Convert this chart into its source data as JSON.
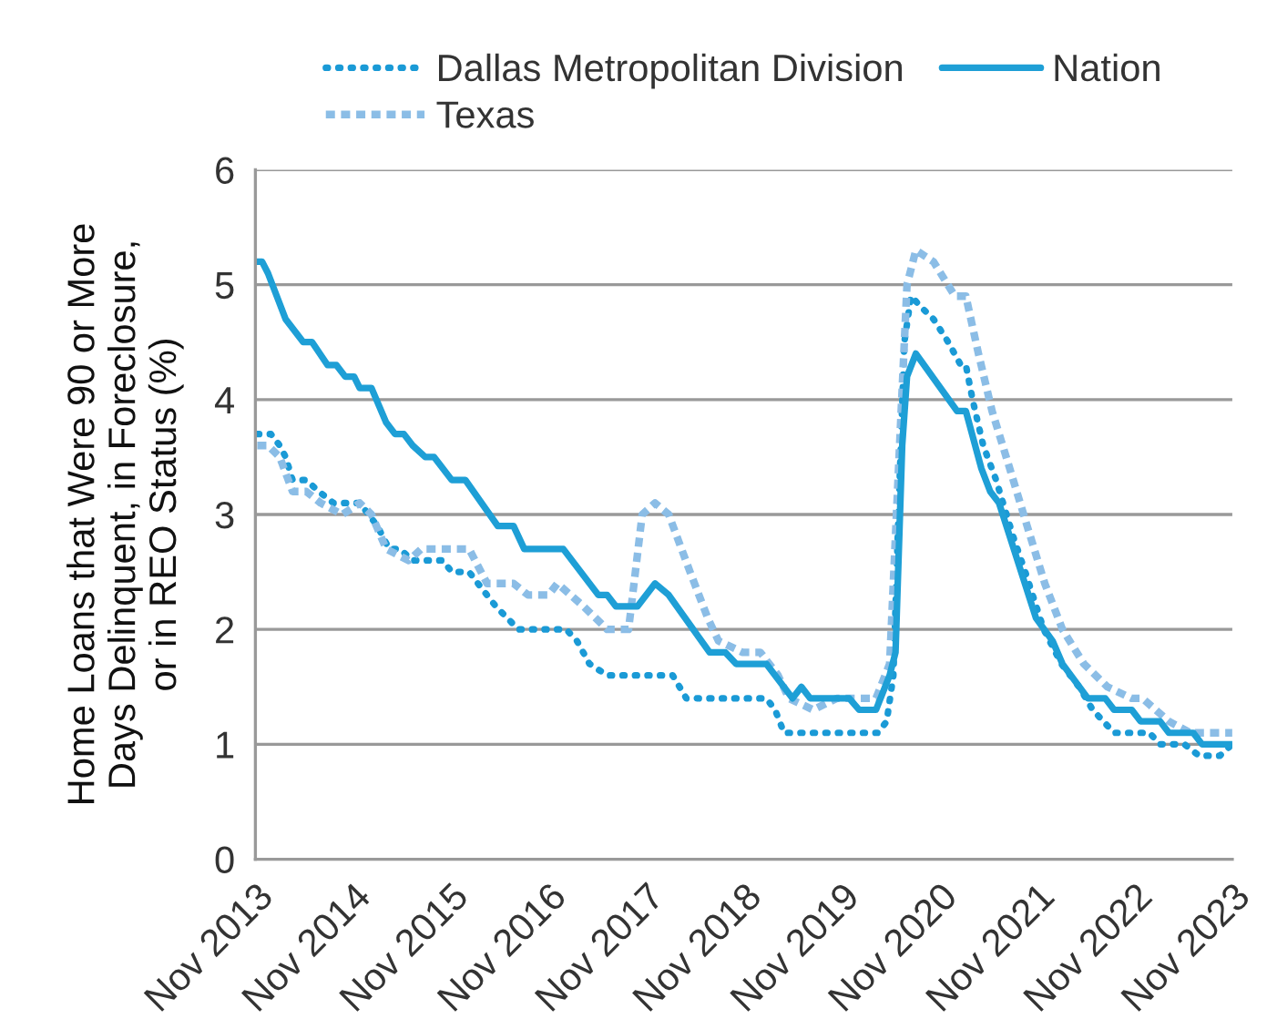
{
  "chart_data": {
    "type": "line",
    "ylabel": "Home Loans that Were 90 or More\nDays Delinquent, in Foreclosure,\nor in REO Status (%)",
    "xlim": [
      "2013-11-01",
      "2023-11-01"
    ],
    "xticks": [
      {
        "value": "2013-11-01",
        "label": "Nov 2013"
      },
      {
        "value": "2014-11-01",
        "label": "Nov 2014"
      },
      {
        "value": "2015-11-01",
        "label": "Nov 2015"
      },
      {
        "value": "2016-11-01",
        "label": "Nov 2016"
      },
      {
        "value": "2017-11-01",
        "label": "Nov 2017"
      },
      {
        "value": "2018-11-01",
        "label": "Nov 2018"
      },
      {
        "value": "2019-11-01",
        "label": "Nov 2019"
      },
      {
        "value": "2020-11-01",
        "label": "Nov 2020"
      },
      {
        "value": "2021-11-01",
        "label": "Nov 2021"
      },
      {
        "value": "2022-11-01",
        "label": "Nov 2022"
      },
      {
        "value": "2023-11-01",
        "label": "Nov 2023"
      }
    ],
    "ylim": [
      0,
      6
    ],
    "yticks": [
      0,
      1,
      2,
      3,
      4,
      5,
      6
    ],
    "grid": "y",
    "legend": "top",
    "series": [
      {
        "name": "Dallas Metropolitan Division",
        "color": "#1a9ad6",
        "line_style": "dotted",
        "x": [
          "2013-11-08",
          "2013-12-29",
          "2014-01-31",
          "2014-02-22",
          "2014-03-20",
          "2014-05-10",
          "2014-06-26",
          "2014-08-20",
          "2014-11-26",
          "2015-01-31",
          "2015-03-16",
          "2015-04-25",
          "2015-06-12",
          "2015-10-03",
          "2015-11-05",
          "2016-01-09",
          "2016-02-11",
          "2016-04-18",
          "2016-07-11",
          "2017-01-06",
          "2017-02-15",
          "2017-04-03",
          "2017-06-08",
          "2018-02-08",
          "2018-03-31",
          "2018-10-14",
          "2019-01-24",
          "2019-02-26",
          "2019-03-31",
          "2020-03-16",
          "2020-04-18",
          "2020-05-13",
          "2020-06-01",
          "2020-06-23",
          "2020-07-18",
          "2020-08-27",
          "2020-10-10",
          "2020-12-04",
          "2021-01-20",
          "2021-02-08",
          "2021-03-05",
          "2021-04-14",
          "2021-06-01",
          "2021-08-05",
          "2021-09-18",
          "2021-11-26",
          "2022-01-31",
          "2022-04-07",
          "2022-05-28",
          "2022-08-16",
          "2022-12-26",
          "2023-02-04",
          "2023-05-06",
          "2023-06-30",
          "2023-09-15",
          "2023-11-01"
        ],
        "values": [
          3.7,
          3.7,
          3.6,
          3.5,
          3.3,
          3.3,
          3.2,
          3.1,
          3.1,
          2.9,
          2.7,
          2.7,
          2.6,
          2.6,
          2.5,
          2.5,
          2.4,
          2.2,
          2.0,
          2.0,
          1.9,
          1.7,
          1.6,
          1.6,
          1.4,
          1.4,
          1.4,
          1.3,
          1.1,
          1.1,
          1.2,
          1.6,
          3.0,
          4.5,
          4.9,
          4.8,
          4.7,
          4.5,
          4.3,
          4.3,
          4.0,
          3.6,
          3.3,
          2.8,
          2.5,
          2.0,
          1.7,
          1.5,
          1.3,
          1.1,
          1.1,
          1.0,
          1.0,
          0.9,
          0.9,
          1.0
        ]
      },
      {
        "name": "Texas",
        "color": "#8bbde6",
        "line_style": "dashed",
        "x": [
          "2013-11-08",
          "2013-12-18",
          "2014-01-31",
          "2014-03-20",
          "2014-05-10",
          "2014-07-03",
          "2014-09-22",
          "2014-11-26",
          "2015-01-09",
          "2015-03-05",
          "2015-05-28",
          "2015-07-14",
          "2016-01-09",
          "2016-03-16",
          "2016-06-23",
          "2016-08-16",
          "2016-11-01",
          "2016-12-04",
          "2017-03-12",
          "2017-06-08",
          "2017-08-27",
          "2017-10-17",
          "2017-12-04",
          "2018-01-24",
          "2018-04-14",
          "2018-06-19",
          "2018-07-29",
          "2018-10-28",
          "2019-01-02",
          "2019-03-09",
          "2019-04-18",
          "2019-07-18",
          "2019-10-14",
          "2019-11-30",
          "2020-03-09",
          "2020-04-29",
          "2020-06-15",
          "2020-07-03",
          "2020-08-05",
          "2020-10-10",
          "2020-12-29",
          "2021-02-08",
          "2021-03-27",
          "2021-05-17",
          "2021-07-22",
          "2021-09-25",
          "2021-11-30",
          "2022-02-04",
          "2022-04-25",
          "2022-07-22",
          "2022-10-21",
          "2022-11-30",
          "2023-03-09",
          "2023-05-28",
          "2023-11-01"
        ],
        "values": [
          3.6,
          3.6,
          3.5,
          3.2,
          3.2,
          3.1,
          3.0,
          3.1,
          3.0,
          2.7,
          2.6,
          2.7,
          2.7,
          2.4,
          2.4,
          2.3,
          2.3,
          2.4,
          2.2,
          2.0,
          2.0,
          3.0,
          3.1,
          3.0,
          2.5,
          2.1,
          1.9,
          1.8,
          1.8,
          1.6,
          1.4,
          1.3,
          1.4,
          1.4,
          1.4,
          1.7,
          4.1,
          5.0,
          5.3,
          5.2,
          4.9,
          4.9,
          4.4,
          3.9,
          3.4,
          2.9,
          2.4,
          2.0,
          1.7,
          1.5,
          1.4,
          1.4,
          1.2,
          1.1,
          1.1
        ]
      },
      {
        "name": "Nation",
        "color": "#1e9fd6",
        "line_style": "solid",
        "x": [
          "2013-11-08",
          "2013-11-26",
          "2013-12-18",
          "2014-02-22",
          "2014-04-29",
          "2014-06-01",
          "2014-07-29",
          "2014-08-31",
          "2014-10-03",
          "2014-11-05",
          "2014-11-26",
          "2015-01-09",
          "2015-03-05",
          "2015-04-07",
          "2015-05-10",
          "2015-06-12",
          "2015-07-29",
          "2015-08-31",
          "2015-11-05",
          "2015-12-26",
          "2016-04-25",
          "2016-06-23",
          "2016-08-02",
          "2016-12-26",
          "2017-05-06",
          "2017-06-08",
          "2017-07-11",
          "2017-09-29",
          "2017-12-04",
          "2018-01-24",
          "2018-06-26",
          "2018-08-24",
          "2018-10-03",
          "2019-01-24",
          "2019-05-02",
          "2019-06-04",
          "2019-07-07",
          "2019-11-30",
          "2020-01-06",
          "2020-03-09",
          "2020-04-29",
          "2020-05-21",
          "2020-06-15",
          "2020-07-03",
          "2020-08-05",
          "2021-01-06",
          "2021-02-08",
          "2021-04-07",
          "2021-05-10",
          "2021-06-12",
          "2021-10-28",
          "2021-12-29",
          "2022-02-04",
          "2022-05-10",
          "2022-07-14",
          "2022-08-16",
          "2022-10-21",
          "2022-11-23",
          "2023-02-04",
          "2023-03-09",
          "2023-06-08",
          "2023-07-11",
          "2023-11-01"
        ],
        "values": [
          5.2,
          5.2,
          5.1,
          4.7,
          4.5,
          4.5,
          4.3,
          4.3,
          4.2,
          4.2,
          4.1,
          4.1,
          3.8,
          3.7,
          3.7,
          3.6,
          3.5,
          3.5,
          3.3,
          3.3,
          2.9,
          2.9,
          2.7,
          2.7,
          2.3,
          2.3,
          2.2,
          2.2,
          2.4,
          2.3,
          1.8,
          1.8,
          1.7,
          1.7,
          1.4,
          1.5,
          1.4,
          1.4,
          1.3,
          1.3,
          1.6,
          1.8,
          3.6,
          4.2,
          4.4,
          3.9,
          3.9,
          3.4,
          3.2,
          3.1,
          2.1,
          1.9,
          1.7,
          1.4,
          1.4,
          1.3,
          1.3,
          1.2,
          1.2,
          1.1,
          1.1,
          1.0,
          1.0
        ]
      }
    ]
  }
}
